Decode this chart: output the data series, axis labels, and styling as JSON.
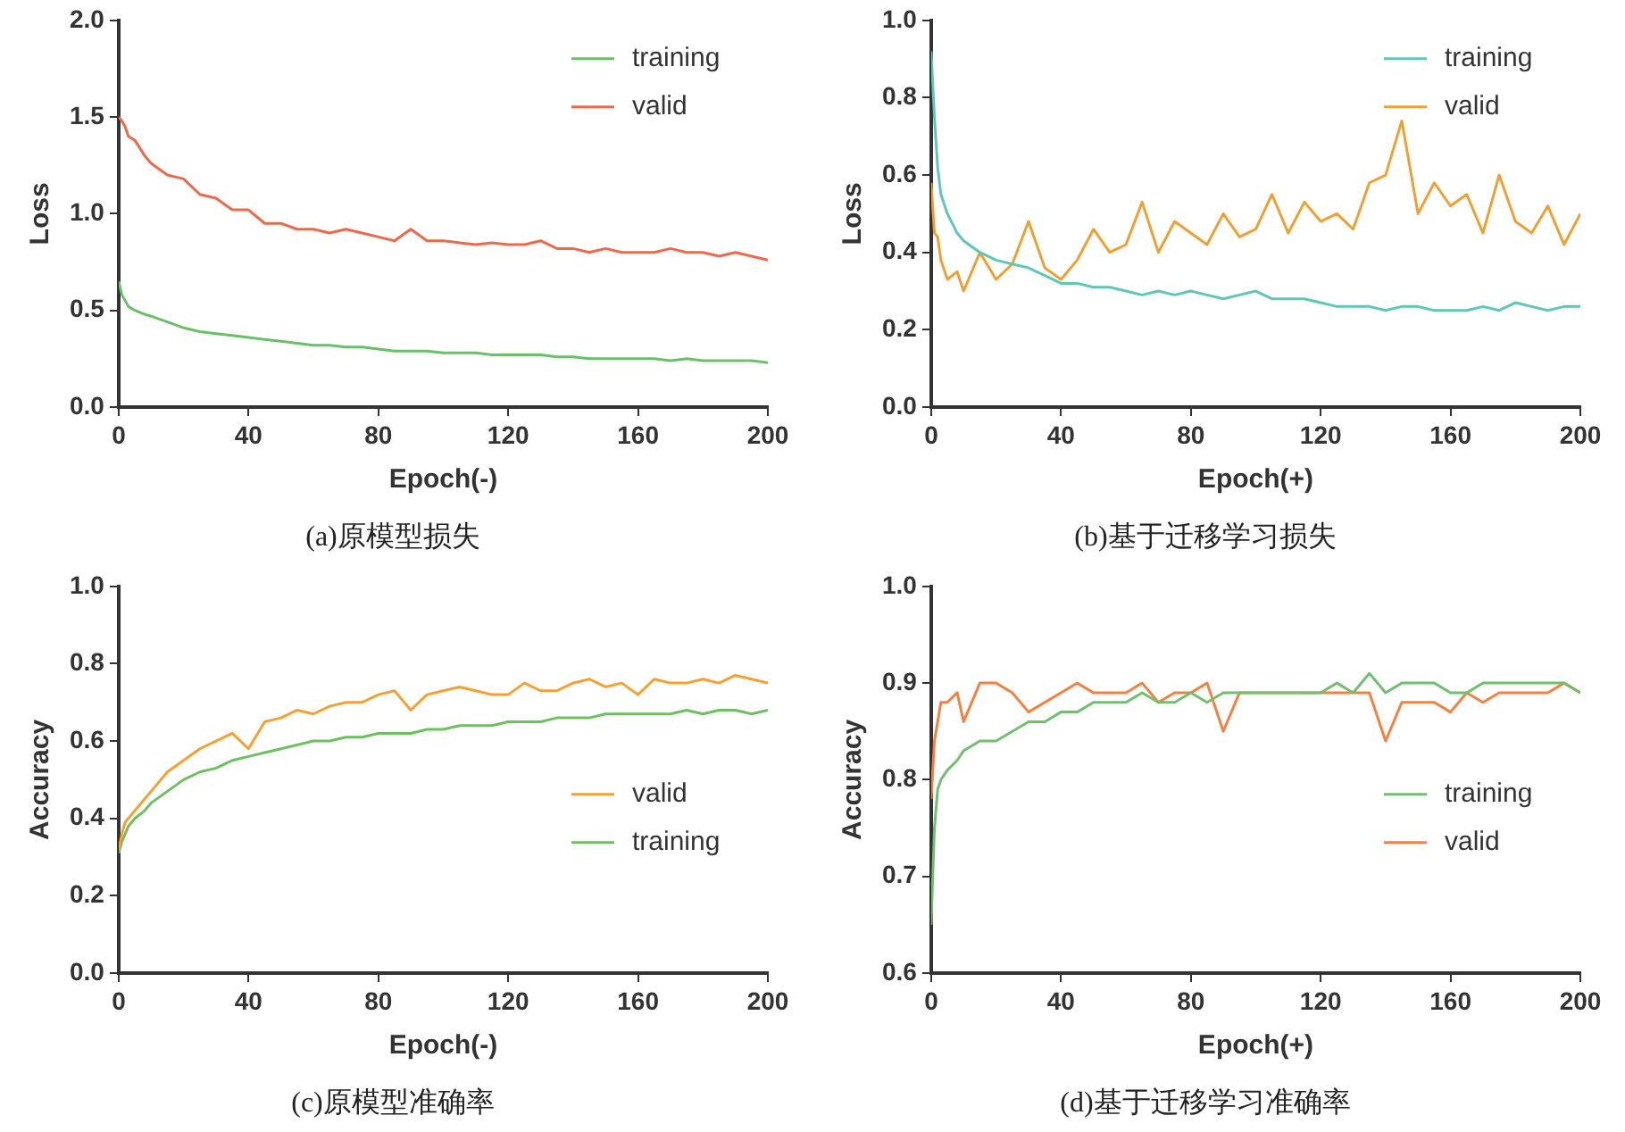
{
  "chart_data": [
    {
      "type": "line",
      "title": "(a)原模型损失",
      "xlabel": "Epoch(-)",
      "ylabel": "Loss",
      "xlim": [
        0,
        200
      ],
      "xticks": [
        0,
        40,
        80,
        120,
        160,
        200
      ],
      "ylim": [
        0,
        2
      ],
      "yticks": [
        {
          "value": 0,
          "label": "0.0"
        },
        {
          "value": 0.5,
          "label": "0.5"
        },
        {
          "value": 1,
          "label": "1.0"
        },
        {
          "value": 1.5,
          "label": "1.5"
        },
        {
          "value": 2,
          "label": "2.0"
        }
      ],
      "grid": false,
      "legend": "top right",
      "marker": "none",
      "line_style": "solid",
      "x": [
        0,
        1,
        2,
        3,
        5,
        8,
        10,
        15,
        20,
        25,
        30,
        35,
        40,
        45,
        50,
        55,
        60,
        65,
        70,
        75,
        80,
        85,
        90,
        95,
        100,
        105,
        110,
        115,
        120,
        125,
        130,
        135,
        140,
        145,
        150,
        155,
        160,
        165,
        170,
        175,
        180,
        185,
        190,
        195,
        200
      ],
      "series": [
        {
          "name": "training",
          "color": "#6abf69",
          "values": [
            0.65,
            0.58,
            0.55,
            0.52,
            0.5,
            0.48,
            0.47,
            0.44,
            0.41,
            0.39,
            0.38,
            0.37,
            0.36,
            0.35,
            0.34,
            0.33,
            0.32,
            0.32,
            0.31,
            0.31,
            0.3,
            0.29,
            0.29,
            0.29,
            0.28,
            0.28,
            0.28,
            0.27,
            0.27,
            0.27,
            0.27,
            0.26,
            0.26,
            0.25,
            0.25,
            0.25,
            0.25,
            0.25,
            0.24,
            0.25,
            0.24,
            0.24,
            0.24,
            0.24,
            0.23
          ]
        },
        {
          "name": "valid",
          "color": "#f0684c",
          "values": [
            1.5,
            1.48,
            1.45,
            1.4,
            1.38,
            1.3,
            1.26,
            1.2,
            1.18,
            1.1,
            1.08,
            1.02,
            1.02,
            0.95,
            0.95,
            0.92,
            0.92,
            0.9,
            0.92,
            0.9,
            0.88,
            0.86,
            0.92,
            0.86,
            0.86,
            0.85,
            0.84,
            0.85,
            0.84,
            0.84,
            0.86,
            0.82,
            0.82,
            0.8,
            0.82,
            0.8,
            0.8,
            0.8,
            0.82,
            0.8,
            0.8,
            0.78,
            0.8,
            0.78,
            0.76
          ]
        }
      ]
    },
    {
      "type": "line",
      "title": "(b)基于迁移学习损失",
      "xlabel": "Epoch(+)",
      "ylabel": "Loss",
      "xlim": [
        0,
        200
      ],
      "xticks": [
        0,
        40,
        80,
        120,
        160,
        200
      ],
      "ylim": [
        0,
        1
      ],
      "yticks": [
        {
          "value": 0,
          "label": "0.0"
        },
        0.2,
        0.4,
        0.6,
        0.8,
        {
          "value": 1,
          "label": "1.0"
        }
      ],
      "grid": false,
      "legend": "top right",
      "marker": "none",
      "line_style": "solid",
      "x": [
        0,
        1,
        2,
        3,
        5,
        8,
        10,
        15,
        20,
        25,
        30,
        35,
        40,
        45,
        50,
        55,
        60,
        65,
        70,
        75,
        80,
        85,
        90,
        95,
        100,
        105,
        110,
        115,
        120,
        125,
        130,
        135,
        140,
        145,
        150,
        155,
        160,
        165,
        170,
        175,
        180,
        185,
        190,
        195,
        200
      ],
      "series": [
        {
          "name": "training",
          "color": "#5cc8b5",
          "values": [
            0.92,
            0.75,
            0.62,
            0.55,
            0.5,
            0.45,
            0.43,
            0.4,
            0.38,
            0.37,
            0.36,
            0.34,
            0.32,
            0.32,
            0.31,
            0.31,
            0.3,
            0.29,
            0.3,
            0.29,
            0.3,
            0.29,
            0.28,
            0.29,
            0.3,
            0.28,
            0.28,
            0.28,
            0.27,
            0.26,
            0.26,
            0.26,
            0.25,
            0.26,
            0.26,
            0.25,
            0.25,
            0.25,
            0.26,
            0.25,
            0.27,
            0.26,
            0.25,
            0.26,
            0.26
          ]
        },
        {
          "name": "valid",
          "color": "#f0a030",
          "values": [
            0.58,
            0.45,
            0.44,
            0.38,
            0.33,
            0.35,
            0.3,
            0.4,
            0.33,
            0.37,
            0.48,
            0.36,
            0.33,
            0.38,
            0.46,
            0.4,
            0.42,
            0.53,
            0.4,
            0.48,
            0.45,
            0.42,
            0.5,
            0.44,
            0.46,
            0.55,
            0.45,
            0.53,
            0.48,
            0.5,
            0.46,
            0.58,
            0.6,
            0.74,
            0.5,
            0.58,
            0.52,
            0.55,
            0.45,
            0.6,
            0.48,
            0.45,
            0.52,
            0.42,
            0.5
          ]
        }
      ]
    },
    {
      "type": "line",
      "title": "(c)原模型准确率",
      "xlabel": "Epoch(-)",
      "ylabel": "Accuracy",
      "xlim": [
        0,
        200
      ],
      "xticks": [
        0,
        40,
        80,
        120,
        160,
        200
      ],
      "ylim": [
        0,
        1
      ],
      "yticks": [
        {
          "value": 0,
          "label": "0.0"
        },
        0.2,
        0.4,
        0.6,
        0.8,
        {
          "value": 1,
          "label": "1.0"
        }
      ],
      "grid": false,
      "legend": "right",
      "marker": "none",
      "line_style": "solid",
      "x": [
        0,
        1,
        2,
        3,
        5,
        8,
        10,
        15,
        20,
        25,
        30,
        35,
        40,
        45,
        50,
        55,
        60,
        65,
        70,
        75,
        80,
        85,
        90,
        95,
        100,
        105,
        110,
        115,
        120,
        125,
        130,
        135,
        140,
        145,
        150,
        155,
        160,
        165,
        170,
        175,
        180,
        185,
        190,
        195,
        200
      ],
      "series": [
        {
          "name": "valid",
          "color": "#f5a030",
          "values": [
            0.32,
            0.36,
            0.39,
            0.4,
            0.42,
            0.45,
            0.47,
            0.52,
            0.55,
            0.58,
            0.6,
            0.62,
            0.58,
            0.65,
            0.66,
            0.68,
            0.67,
            0.69,
            0.7,
            0.7,
            0.72,
            0.73,
            0.68,
            0.72,
            0.73,
            0.74,
            0.73,
            0.72,
            0.72,
            0.75,
            0.73,
            0.73,
            0.75,
            0.76,
            0.74,
            0.75,
            0.72,
            0.76,
            0.75,
            0.75,
            0.76,
            0.75,
            0.77,
            0.76,
            0.75
          ]
        },
        {
          "name": "training",
          "color": "#6cc060",
          "values": [
            0.31,
            0.34,
            0.36,
            0.38,
            0.4,
            0.42,
            0.44,
            0.47,
            0.5,
            0.52,
            0.53,
            0.55,
            0.56,
            0.57,
            0.58,
            0.59,
            0.6,
            0.6,
            0.61,
            0.61,
            0.62,
            0.62,
            0.62,
            0.63,
            0.63,
            0.64,
            0.64,
            0.64,
            0.65,
            0.65,
            0.65,
            0.66,
            0.66,
            0.66,
            0.67,
            0.67,
            0.67,
            0.67,
            0.67,
            0.68,
            0.67,
            0.68,
            0.68,
            0.67,
            0.68
          ]
        }
      ]
    },
    {
      "type": "line",
      "title": "(d)基于迁移学习准确率",
      "xlabel": "Epoch(+)",
      "ylabel": "Accuracy",
      "xlim": [
        0,
        200
      ],
      "xticks": [
        0,
        40,
        80,
        120,
        160,
        200
      ],
      "ylim": [
        0.6,
        1
      ],
      "yticks": [
        0.6,
        0.7,
        0.8,
        0.9,
        {
          "value": 1,
          "label": "1.0"
        }
      ],
      "grid": false,
      "legend": "right",
      "marker": "none",
      "line_style": "solid",
      "x": [
        0,
        1,
        2,
        3,
        5,
        8,
        10,
        15,
        20,
        25,
        30,
        35,
        40,
        45,
        50,
        55,
        60,
        65,
        70,
        75,
        80,
        85,
        90,
        95,
        100,
        105,
        110,
        115,
        120,
        125,
        130,
        135,
        140,
        145,
        150,
        155,
        160,
        165,
        170,
        175,
        180,
        185,
        190,
        195,
        200
      ],
      "series": [
        {
          "name": "training",
          "color": "#70c070",
          "values": [
            0.65,
            0.75,
            0.79,
            0.8,
            0.81,
            0.82,
            0.83,
            0.84,
            0.84,
            0.85,
            0.86,
            0.86,
            0.87,
            0.87,
            0.88,
            0.88,
            0.88,
            0.89,
            0.88,
            0.88,
            0.89,
            0.88,
            0.89,
            0.89,
            0.89,
            0.89,
            0.89,
            0.89,
            0.89,
            0.9,
            0.89,
            0.91,
            0.89,
            0.9,
            0.9,
            0.9,
            0.89,
            0.89,
            0.9,
            0.9,
            0.9,
            0.9,
            0.9,
            0.9,
            0.89
          ]
        },
        {
          "name": "valid",
          "color": "#f58040",
          "values": [
            0.78,
            0.84,
            0.86,
            0.88,
            0.88,
            0.89,
            0.86,
            0.9,
            0.9,
            0.89,
            0.87,
            0.88,
            0.89,
            0.9,
            0.89,
            0.89,
            0.89,
            0.9,
            0.88,
            0.89,
            0.89,
            0.9,
            0.85,
            0.89,
            0.89,
            0.89,
            0.89,
            0.89,
            0.89,
            0.89,
            0.89,
            0.89,
            0.84,
            0.88,
            0.88,
            0.88,
            0.87,
            0.89,
            0.88,
            0.89,
            0.89,
            0.89,
            0.89,
            0.9,
            0.89
          ]
        }
      ]
    }
  ]
}
